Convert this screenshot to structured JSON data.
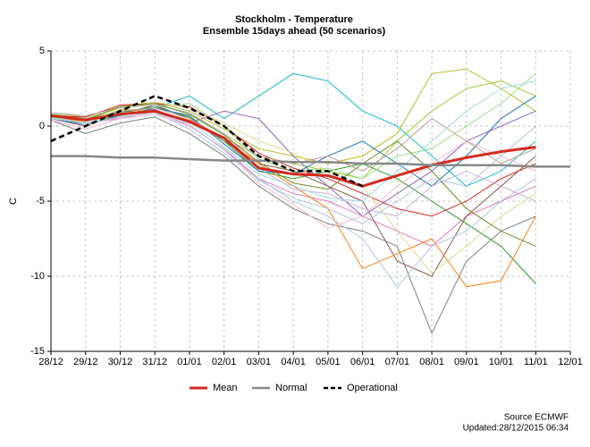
{
  "chart_data": {
    "type": "line",
    "title": "Stockholm - Temperature",
    "subtitle": "Ensemble 15days ahead (50 scenarios)",
    "y_label": "C",
    "source": "Source ECMWF",
    "updated": "Updated:28/12/2015 06:34",
    "categories": [
      "28/12",
      "29/12",
      "30/12",
      "31/12",
      "01/01",
      "02/01",
      "03/01",
      "04/01",
      "05/01",
      "06/01",
      "07/01",
      "08/01",
      "09/01",
      "10/01",
      "11/01",
      "12/01"
    ],
    "ylim": [
      -15,
      5
    ],
    "yticks": [
      -15,
      -10,
      -5,
      0,
      5
    ],
    "grid": true,
    "legend": "bottom",
    "series": [
      {
        "name": "Mean",
        "color": "#d42a1e",
        "width": 3,
        "dash": false,
        "values": [
          0.7,
          0.4,
          0.8,
          1.0,
          0.3,
          -0.8,
          -2.8,
          -3.2,
          -3.3,
          -4.0,
          -3.3,
          -2.6,
          -2.1,
          -1.7,
          -1.4,
          null
        ]
      },
      {
        "name": "Normal",
        "color": "#888888",
        "width": 2.5,
        "dash": false,
        "values": [
          -2.0,
          -2.0,
          -2.1,
          -2.1,
          -2.2,
          -2.3,
          -2.3,
          -2.4,
          -2.4,
          -2.5,
          -2.5,
          -2.6,
          -2.6,
          -2.6,
          -2.7,
          -2.7
        ]
      },
      {
        "name": "Operational",
        "color": "#000000",
        "width": 2.5,
        "dash": true,
        "values": [
          -1.0,
          0.0,
          1.0,
          2.0,
          1.2,
          0.0,
          -2.0,
          -3.0,
          -3.0,
          -4.0,
          null,
          null,
          null,
          null,
          null,
          null
        ]
      }
    ],
    "scenarios": [
      {
        "color": "#9acd32",
        "values": [
          0.8,
          0.5,
          1.2,
          1.5,
          0.8,
          -0.5,
          -2.0,
          -2.5,
          -3.0,
          -3.5,
          -1.0,
          1.0,
          2.5,
          3.0,
          2.0,
          null
        ]
      },
      {
        "color": "#e377c2",
        "values": [
          0.6,
          0.2,
          0.5,
          1.0,
          0.0,
          -1.5,
          -3.5,
          -4.5,
          -5.0,
          -6.0,
          -7.0,
          -8.0,
          -6.0,
          -5.0,
          -4.0,
          null
        ]
      },
      {
        "color": "#17becf",
        "values": [
          0.7,
          0.3,
          1.0,
          1.2,
          2.0,
          0.5,
          2.0,
          3.5,
          3.0,
          1.0,
          0.0,
          -2.0,
          -4.0,
          -3.0,
          -1.0,
          null
        ]
      },
      {
        "color": "#8c564b",
        "values": [
          0.5,
          0.0,
          0.8,
          1.4,
          0.5,
          -1.0,
          -2.5,
          -3.0,
          -4.0,
          -5.0,
          -9.0,
          -10.0,
          -6.0,
          -4.0,
          -2.0,
          null
        ]
      },
      {
        "color": "#bcbd22",
        "values": [
          0.9,
          0.6,
          1.3,
          1.6,
          1.0,
          -0.2,
          -1.5,
          -2.0,
          -2.5,
          -2.0,
          -0.5,
          3.5,
          3.8,
          2.5,
          1.0,
          null
        ]
      },
      {
        "color": "#7f7f7f",
        "values": [
          0.4,
          -0.5,
          0.2,
          0.6,
          -0.5,
          -2.0,
          -4.0,
          -5.5,
          -6.5,
          -7.0,
          -8.0,
          -13.8,
          -9.0,
          -7.0,
          -6.0,
          null
        ]
      },
      {
        "color": "#9467bd",
        "values": [
          0.7,
          0.4,
          1.0,
          1.1,
          0.2,
          1.0,
          0.5,
          -2.0,
          -4.0,
          -6.0,
          -4.5,
          -3.0,
          -1.0,
          0.0,
          1.0,
          null
        ]
      },
      {
        "color": "#2ca02c",
        "values": [
          0.8,
          0.5,
          0.9,
          1.3,
          0.6,
          -1.0,
          -3.0,
          -3.5,
          -3.0,
          -2.5,
          -3.5,
          -5.0,
          -6.5,
          -8.0,
          -10.5,
          null
        ]
      },
      {
        "color": "#ff7f0e",
        "values": [
          0.6,
          0.3,
          1.1,
          1.0,
          0.4,
          -0.8,
          -2.5,
          -4.0,
          -5.5,
          -9.5,
          -8.5,
          -7.5,
          -10.7,
          -10.3,
          -6.0,
          null
        ]
      },
      {
        "color": "#1f77b4",
        "values": [
          0.5,
          0.1,
          0.7,
          1.2,
          0.7,
          -1.2,
          -3.0,
          -3.2,
          -2.0,
          -1.0,
          -2.5,
          -4.0,
          -2.0,
          0.5,
          2.0,
          null
        ]
      },
      {
        "color": "#d62728",
        "values": [
          0.7,
          0.6,
          1.4,
          1.5,
          1.3,
          0.0,
          -1.8,
          -2.8,
          -3.5,
          -4.5,
          -5.5,
          -6.0,
          -5.0,
          -3.5,
          -2.5,
          null
        ]
      },
      {
        "color": "#aec7e8",
        "values": [
          0.8,
          0.4,
          0.8,
          0.9,
          -0.2,
          -1.8,
          -3.5,
          -5.0,
          -6.0,
          -7.5,
          -10.7,
          -8.0,
          -7.0,
          -5.0,
          -3.5,
          null
        ]
      },
      {
        "color": "#98df8a",
        "values": [
          0.6,
          0.2,
          0.6,
          1.3,
          1.5,
          0.0,
          -2.2,
          -3.0,
          -2.8,
          -3.5,
          -2.0,
          -1.5,
          0.0,
          1.5,
          3.5,
          null
        ]
      },
      {
        "color": "#c5b0d5",
        "values": [
          0.9,
          0.7,
          1.2,
          1.4,
          0.9,
          -0.5,
          -2.8,
          -4.2,
          -4.5,
          -5.5,
          -6.0,
          -4.0,
          -3.0,
          -4.0,
          -5.0,
          null
        ]
      },
      {
        "color": "#f7b6d2",
        "values": [
          0.4,
          -0.2,
          0.5,
          0.8,
          0.0,
          -1.5,
          -3.8,
          -5.2,
          -6.8,
          -6.0,
          -4.0,
          -2.5,
          -1.0,
          -2.0,
          -3.0,
          null
        ]
      },
      {
        "color": "#c49c94",
        "values": [
          0.7,
          0.5,
          1.0,
          1.2,
          0.5,
          -0.8,
          -2.0,
          -2.5,
          -2.0,
          -3.0,
          -1.5,
          0.5,
          -1.0,
          -2.5,
          -1.5,
          null
        ]
      },
      {
        "color": "#dbdb8d",
        "values": [
          0.8,
          0.3,
          1.1,
          1.6,
          1.2,
          0.2,
          -1.0,
          -1.8,
          -3.0,
          -4.0,
          -7.0,
          -9.8,
          -8.0,
          -6.0,
          -4.5,
          null
        ]
      },
      {
        "color": "#9edae5",
        "values": [
          0.5,
          0.2,
          0.9,
          1.0,
          0.3,
          -1.4,
          -3.2,
          -4.0,
          -4.8,
          -5.0,
          -3.0,
          -1.0,
          1.0,
          2.5,
          3.0,
          null
        ]
      },
      {
        "color": "#6b8e23",
        "values": [
          0.6,
          0.4,
          1.3,
          1.5,
          0.8,
          -0.6,
          -2.4,
          -3.8,
          -4.2,
          -2.5,
          -1.0,
          -3.0,
          -5.5,
          -7.0,
          -8.0,
          null
        ]
      },
      {
        "color": "#b0c4de",
        "values": [
          0.7,
          0.1,
          0.6,
          0.9,
          0.1,
          -1.6,
          -3.6,
          -4.8,
          -5.5,
          -6.5,
          -5.0,
          -3.5,
          -4.0,
          -2.0,
          0.0,
          null
        ]
      }
    ]
  }
}
